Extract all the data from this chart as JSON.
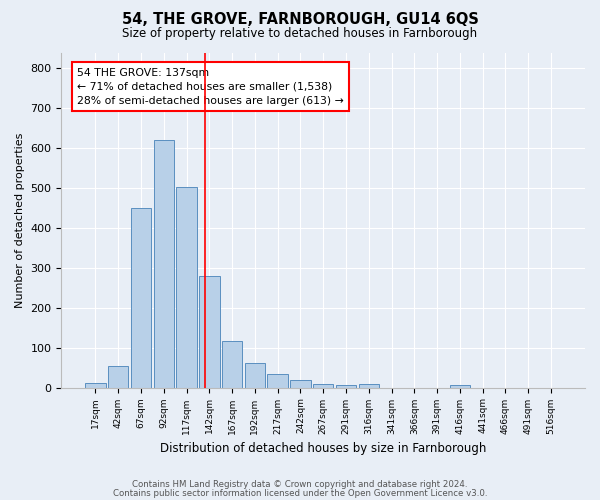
{
  "title1": "54, THE GROVE, FARNBOROUGH, GU14 6QS",
  "title2": "Size of property relative to detached houses in Farnborough",
  "xlabel": "Distribution of detached houses by size in Farnborough",
  "ylabel": "Number of detached properties",
  "bar_labels": [
    "17sqm",
    "42sqm",
    "67sqm",
    "92sqm",
    "117sqm",
    "142sqm",
    "167sqm",
    "192sqm",
    "217sqm",
    "242sqm",
    "267sqm",
    "291sqm",
    "316sqm",
    "341sqm",
    "366sqm",
    "391sqm",
    "416sqm",
    "441sqm",
    "466sqm",
    "491sqm",
    "516sqm"
  ],
  "bar_values": [
    12,
    53,
    450,
    621,
    503,
    280,
    116,
    62,
    35,
    20,
    10,
    7,
    8,
    0,
    0,
    0,
    7,
    0,
    0,
    0,
    0
  ],
  "bar_color": "#b8d0e8",
  "bar_edge_color": "#5a8fc0",
  "vline_x": 4.82,
  "vline_color": "red",
  "annotation_text": "54 THE GROVE: 137sqm\n← 71% of detached houses are smaller (1,538)\n28% of semi-detached houses are larger (613) →",
  "annotation_box_color": "white",
  "annotation_border_color": "red",
  "ylim": [
    0,
    840
  ],
  "yticks": [
    0,
    100,
    200,
    300,
    400,
    500,
    600,
    700,
    800
  ],
  "footer1": "Contains HM Land Registry data © Crown copyright and database right 2024.",
  "footer2": "Contains public sector information licensed under the Open Government Licence v3.0.",
  "bg_color": "#e8eef6",
  "plot_bg_color": "#e8eef6"
}
